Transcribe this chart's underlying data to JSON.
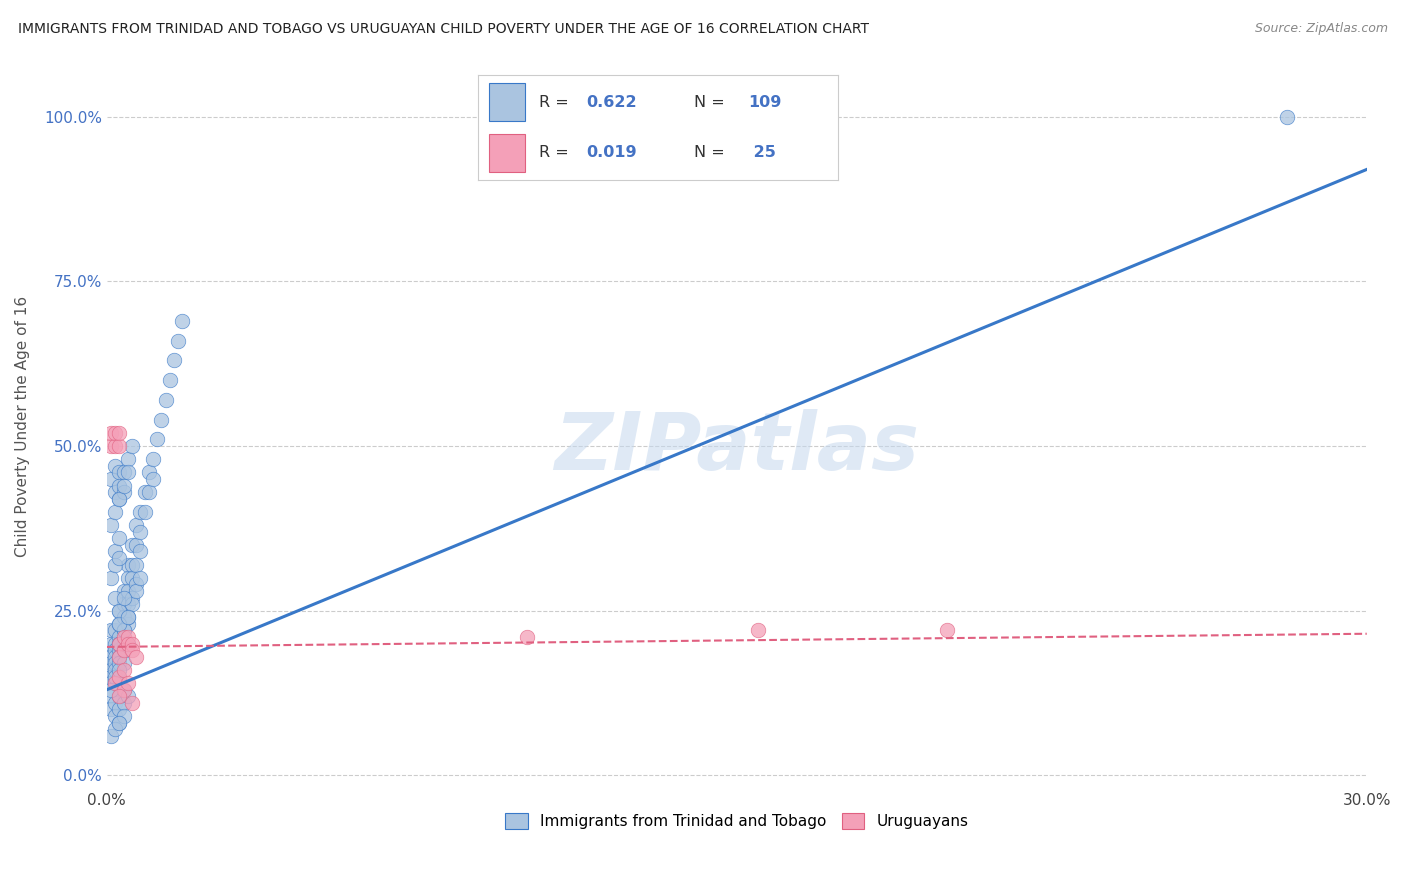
{
  "title": "IMMIGRANTS FROM TRINIDAD AND TOBAGO VS URUGUAYAN CHILD POVERTY UNDER THE AGE OF 16 CORRELATION CHART",
  "source": "Source: ZipAtlas.com",
  "ylabel": "Child Poverty Under the Age of 16",
  "xlim": [
    0.0,
    0.3
  ],
  "ylim": [
    -0.02,
    1.08
  ],
  "yticks": [
    0.0,
    0.25,
    0.5,
    0.75,
    1.0
  ],
  "ytick_labels": [
    "0.0%",
    "25.0%",
    "50.0%",
    "75.0%",
    "100.0%"
  ],
  "xticks": [
    0.0,
    0.3
  ],
  "xtick_labels": [
    "0.0%",
    "30.0%"
  ],
  "series1_color": "#aac4e0",
  "series2_color": "#f4a0b8",
  "line1_color": "#3878c8",
  "line2_color": "#e06080",
  "watermark": "ZIPatlas",
  "background_color": "#ffffff",
  "grid_color": "#cccccc",
  "legend1_label": "Immigrants from Trinidad and Tobago",
  "legend2_label": "Uruguayans",
  "blue_line_x0": 0.0,
  "blue_line_y0": 0.13,
  "blue_line_x1": 0.3,
  "blue_line_y1": 0.92,
  "pink_line_x0": 0.0,
  "pink_line_y0": 0.195,
  "pink_line_x1": 0.3,
  "pink_line_y1": 0.215,
  "blue_scatter_x": [
    0.001,
    0.001,
    0.001,
    0.001,
    0.001,
    0.001,
    0.001,
    0.001,
    0.002,
    0.002,
    0.002,
    0.002,
    0.002,
    0.002,
    0.002,
    0.003,
    0.003,
    0.003,
    0.003,
    0.003,
    0.003,
    0.003,
    0.003,
    0.004,
    0.004,
    0.004,
    0.004,
    0.004,
    0.004,
    0.004,
    0.005,
    0.005,
    0.005,
    0.005,
    0.005,
    0.005,
    0.006,
    0.006,
    0.006,
    0.006,
    0.007,
    0.007,
    0.007,
    0.007,
    0.008,
    0.008,
    0.008,
    0.009,
    0.009,
    0.01,
    0.01,
    0.011,
    0.011,
    0.012,
    0.013,
    0.014,
    0.015,
    0.016,
    0.017,
    0.018,
    0.001,
    0.002,
    0.002,
    0.003,
    0.003,
    0.003,
    0.004,
    0.004,
    0.005,
    0.006,
    0.001,
    0.002,
    0.003,
    0.004,
    0.002,
    0.003,
    0.004,
    0.005,
    0.003,
    0.004,
    0.001,
    0.002,
    0.002,
    0.003,
    0.003,
    0.001,
    0.002,
    0.003,
    0.004,
    0.005,
    0.003,
    0.004,
    0.005,
    0.006,
    0.007,
    0.008,
    0.001,
    0.002,
    0.003,
    0.002,
    0.003,
    0.004,
    0.002,
    0.003,
    0.001,
    0.003,
    0.005,
    0.281
  ],
  "blue_scatter_y": [
    0.22,
    0.2,
    0.18,
    0.17,
    0.16,
    0.15,
    0.14,
    0.12,
    0.22,
    0.2,
    0.19,
    0.18,
    0.17,
    0.16,
    0.14,
    0.25,
    0.23,
    0.21,
    0.2,
    0.19,
    0.18,
    0.17,
    0.15,
    0.28,
    0.26,
    0.24,
    0.22,
    0.2,
    0.19,
    0.17,
    0.32,
    0.3,
    0.28,
    0.26,
    0.23,
    0.2,
    0.35,
    0.32,
    0.3,
    0.27,
    0.38,
    0.35,
    0.32,
    0.29,
    0.4,
    0.37,
    0.34,
    0.43,
    0.4,
    0.46,
    0.43,
    0.48,
    0.45,
    0.51,
    0.54,
    0.57,
    0.6,
    0.63,
    0.66,
    0.69,
    0.45,
    0.47,
    0.43,
    0.46,
    0.42,
    0.44,
    0.46,
    0.43,
    0.48,
    0.5,
    0.1,
    0.11,
    0.12,
    0.13,
    0.09,
    0.1,
    0.11,
    0.12,
    0.08,
    0.09,
    0.3,
    0.32,
    0.34,
    0.33,
    0.36,
    0.38,
    0.4,
    0.42,
    0.44,
    0.46,
    0.2,
    0.22,
    0.24,
    0.26,
    0.28,
    0.3,
    0.06,
    0.07,
    0.08,
    0.27,
    0.25,
    0.27,
    0.15,
    0.16,
    0.13,
    0.23,
    0.24,
    1.0
  ],
  "pink_scatter_x": [
    0.001,
    0.001,
    0.002,
    0.002,
    0.003,
    0.003,
    0.003,
    0.003,
    0.004,
    0.004,
    0.005,
    0.005,
    0.006,
    0.006,
    0.007,
    0.002,
    0.003,
    0.004,
    0.004,
    0.005,
    0.1,
    0.155,
    0.2,
    0.003,
    0.006
  ],
  "pink_scatter_y": [
    0.5,
    0.52,
    0.5,
    0.52,
    0.5,
    0.52,
    0.2,
    0.18,
    0.21,
    0.19,
    0.21,
    0.2,
    0.2,
    0.19,
    0.18,
    0.14,
    0.15,
    0.13,
    0.16,
    0.14,
    0.21,
    0.22,
    0.22,
    0.12,
    0.11
  ]
}
